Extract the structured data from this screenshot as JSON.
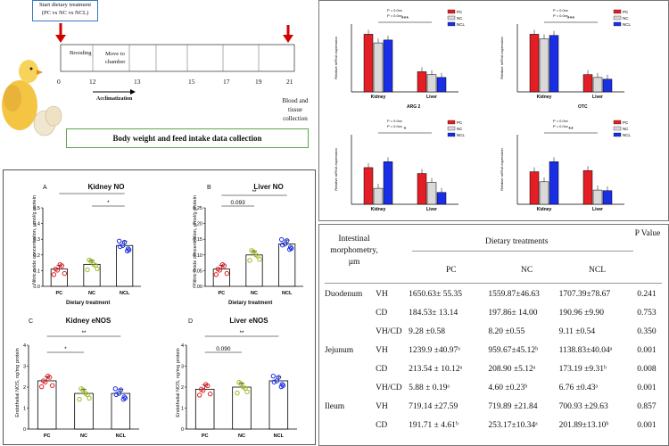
{
  "timeline": {
    "start_label_line1": "Start dietary treatment",
    "start_label_line2": "(PC vs NC vs NCL)",
    "phases": [
      "Brooding",
      "Move to chamber"
    ],
    "days": [
      "0",
      "12",
      "13",
      "15",
      "17",
      "19",
      "21"
    ],
    "acclimatization": "Acclimatization",
    "end_label_line1": "Blood and",
    "end_label_line2": "tissue collection",
    "banner": "Body weight and feed intake data collection"
  },
  "no_panels": {
    "ylabel": "Nitric oxide concentration, µmol/g protein",
    "xlabel": "Dietary treatment",
    "A": {
      "letter": "A",
      "title": "Kidney NO",
      "yticks": [
        "0.0",
        "0.1",
        "0.2",
        "0.3",
        "0.4",
        "0.5"
      ],
      "sig": [
        "*",
        "*"
      ]
    },
    "B": {
      "letter": "B",
      "title": "Liver NO",
      "yticks": [
        "0.00",
        "0.05",
        "0.10",
        "0.15",
        "0.20",
        "0.25"
      ],
      "sig": [
        "0.093",
        "**"
      ]
    }
  },
  "enos_panels": {
    "ylabel": "Endothelial NOS, ng/mg protein",
    "C": {
      "letter": "C",
      "title": "Kidney eNOS",
      "yticks": [
        "0",
        "1",
        "2",
        "3",
        "4"
      ],
      "sig": [
        "**",
        "*"
      ]
    },
    "D": {
      "letter": "D",
      "title": "Liver eNOS",
      "yticks": [
        "0",
        "1",
        "2",
        "3",
        "4"
      ],
      "sig": [
        "0.090",
        "**"
      ]
    }
  },
  "gene_panels": {
    "p_text": [
      "P = 0.0xx",
      "P = 0.0xx"
    ],
    "ylabel": "Relative mRNA expression",
    "tissues": [
      "Kidney",
      "Liver"
    ],
    "legend": [
      "PC",
      "NC",
      "NCL"
    ],
    "top_sig": "***",
    "mid_sig_left": "*",
    "mid_sig_right": "**",
    "titles": [
      "ARG 2",
      "OTC"
    ]
  },
  "chart_data": [
    {
      "type": "bar",
      "title": "Kidney NO",
      "categories": [
        "PC",
        "NC",
        "NCL"
      ],
      "values": [
        0.11,
        0.14,
        0.26
      ],
      "ylim": [
        0,
        0.5
      ],
      "xlabel": "Dietary treatment",
      "ylabel": "Nitric oxide concentration, µmol/g protein"
    },
    {
      "type": "bar",
      "title": "Liver NO",
      "categories": [
        "PC",
        "NC",
        "NCL"
      ],
      "values": [
        0.055,
        0.1,
        0.135
      ],
      "ylim": [
        0,
        0.25
      ],
      "xlabel": "Dietary treatment",
      "ylabel": "Nitric oxide concentration, µmol/g protein"
    },
    {
      "type": "bar",
      "title": "Kidney eNOS",
      "categories": [
        "PC",
        "NC",
        "NCL"
      ],
      "values": [
        2.3,
        1.7,
        1.7
      ],
      "ylim": [
        0,
        4
      ],
      "ylabel": "Endothelial NOS, ng/mg protein"
    },
    {
      "type": "bar",
      "title": "Liver eNOS",
      "categories": [
        "PC",
        "NC",
        "NCL"
      ],
      "values": [
        1.9,
        2.0,
        2.3
      ],
      "ylim": [
        0,
        4
      ],
      "ylabel": "Endothelial NOS, ng/mg protein"
    }
  ],
  "legend_colors": {
    "PC": "#e31e24",
    "NC": "#d9d9d9",
    "NCL": "#1a2ee6"
  },
  "dot_colors": {
    "PC": "#e31e24",
    "NC": "#9dbb23",
    "NCL": "#1a2ee6"
  },
  "table": {
    "header_col1": "Intestinal morphometry, µm",
    "header_group": "Dietary treatments",
    "header_p": "P Value",
    "treatments": [
      "PC",
      "NC",
      "NCL"
    ],
    "rows": [
      {
        "segment": "Duodenum",
        "measure": "VH",
        "pc": "1650.63± 55.35",
        "nc": "1559.87±46.63",
        "ncl": "1707.39±78.67",
        "p": "0.241"
      },
      {
        "segment": "",
        "measure": "CD",
        "pc": "184.53± 13.14",
        "nc": "197.86± 14.00",
        "ncl": "190.96 ±9.90",
        "p": "0.753"
      },
      {
        "segment": "",
        "measure": "VH/CD",
        "pc": "9.28 ±0.58",
        "nc": "8.20 ±0.55",
        "ncl": "9.11 ±0.54",
        "p": "0.350"
      },
      {
        "segment": "Jejunum",
        "measure": "VH",
        "pc": "1239.9 ±40.97ᵃ",
        "nc": "959.67±45.12ᵇ",
        "ncl": "1138.83±40.04ᵃ",
        "p": "0.001"
      },
      {
        "segment": "",
        "measure": "CD",
        "pc": "213.54 ± 10.12ᵃ",
        "nc": "208.90 ±5.12ᵃ",
        "ncl": "173.19 ±9.31ᵇ",
        "p": "0.008"
      },
      {
        "segment": "",
        "measure": "VH/CD",
        "pc": "5.88 ± 0.19ᵃ",
        "nc": "4.60 ±0.23ᵇ",
        "ncl": "6.76 ±0.43ᵃ",
        "p": "0.001"
      },
      {
        "segment": "Ileum",
        "measure": "VH",
        "pc": "719.14 ±27.59",
        "nc": "719.89 ±21.84",
        "ncl": "700.93 ±29.63",
        "p": "0.857"
      },
      {
        "segment": "",
        "measure": "CD",
        "pc": "191.71 ± 4.61ᵇ",
        "nc": "253.17±10.34ᵃ",
        "ncl": "201.89±13.10ᵇ",
        "p": "0.001"
      }
    ]
  }
}
